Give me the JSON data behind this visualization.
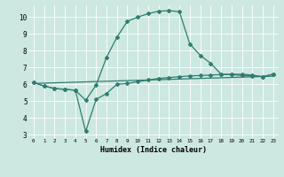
{
  "xlabel": "Humidex (Indice chaleur)",
  "background_color": "#cce8e0",
  "grid_color": "#ffffff",
  "line_color": "#2e7d6e",
  "xlim": [
    -0.5,
    23.5
  ],
  "ylim": [
    2.8,
    10.7
  ],
  "yticks": [
    3,
    4,
    5,
    6,
    7,
    8,
    9,
    10
  ],
  "xticks": [
    0,
    1,
    2,
    3,
    4,
    5,
    6,
    7,
    8,
    9,
    10,
    11,
    12,
    13,
    14,
    15,
    16,
    17,
    18,
    19,
    20,
    21,
    22,
    23
  ],
  "line1_x": [
    0,
    1,
    2,
    3,
    4,
    5,
    6,
    7,
    8,
    9,
    10,
    11,
    12,
    13,
    14,
    15,
    16,
    17,
    18,
    19,
    20,
    21,
    22,
    23
  ],
  "line1_y": [
    6.1,
    5.9,
    5.75,
    5.7,
    5.65,
    3.2,
    5.1,
    5.45,
    6.0,
    6.05,
    6.15,
    6.25,
    6.35,
    6.4,
    6.45,
    6.5,
    6.52,
    6.55,
    6.58,
    6.6,
    6.6,
    6.55,
    6.45,
    6.6
  ],
  "line2_x": [
    0,
    1,
    2,
    3,
    4,
    5,
    6,
    7,
    8,
    9,
    10,
    11,
    12,
    13,
    14,
    15,
    16,
    17,
    18,
    19,
    20,
    21,
    22,
    23
  ],
  "line2_y": [
    6.1,
    5.9,
    5.75,
    5.7,
    5.65,
    5.05,
    5.95,
    7.6,
    8.8,
    9.75,
    10.0,
    10.2,
    10.35,
    10.38,
    10.32,
    8.4,
    7.72,
    7.25,
    6.6,
    6.58,
    6.52,
    6.5,
    6.45,
    6.6
  ],
  "line3_x": [
    0,
    23
  ],
  "line3_y": [
    6.05,
    6.48
  ]
}
